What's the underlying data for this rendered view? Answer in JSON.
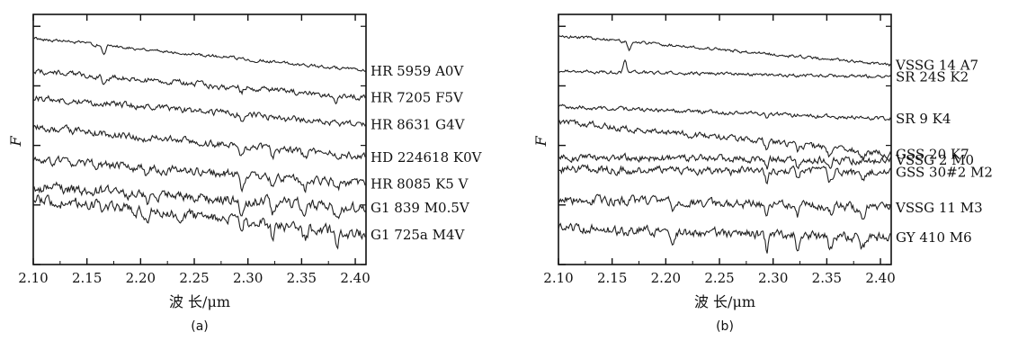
{
  "chart_data": [
    {
      "type": "line",
      "panel_label": "(a)",
      "xlabel": "波 长/μm",
      "ylabel": "F",
      "xlim": [
        2.1,
        2.41
      ],
      "xticks": [
        "2.10",
        "2.15",
        "2.20",
        "2.25",
        "2.30",
        "2.35",
        "2.40"
      ],
      "grid": false,
      "series": [
        {
          "name": "HR 5959 A0V",
          "start": 8.6,
          "end": 7.5,
          "noise": 0.04,
          "features": [
            {
              "x": 2.166,
              "depth": 0.35,
              "width": 0.002
            }
          ]
        },
        {
          "name": "HR 7205 F5V",
          "start": 7.5,
          "end": 6.6,
          "noise": 0.07,
          "features": [
            {
              "x": 2.166,
              "depth": 0.3,
              "width": 0.002
            },
            {
              "x": 2.294,
              "depth": 0.15,
              "width": 0.002
            },
            {
              "x": 2.382,
              "depth": 0.35,
              "width": 0.002
            }
          ]
        },
        {
          "name": "HR 8631 G4V",
          "start": 6.6,
          "end": 5.7,
          "noise": 0.08,
          "features": [
            {
              "x": 2.294,
              "depth": 0.2,
              "width": 0.002
            },
            {
              "x": 2.335,
              "depth": 0.15,
              "width": 0.003
            }
          ]
        },
        {
          "name": "HD 224618 K0V",
          "start": 5.6,
          "end": 4.6,
          "noise": 0.09,
          "features": [
            {
              "x": 2.206,
              "depth": 0.2,
              "width": 0.002
            },
            {
              "x": 2.294,
              "depth": 0.3,
              "width": 0.002
            },
            {
              "x": 2.323,
              "depth": 0.25,
              "width": 0.002
            },
            {
              "x": 2.353,
              "depth": 0.2,
              "width": 0.003
            }
          ]
        },
        {
          "name": "HR 8085 K5 V",
          "start": 4.5,
          "end": 3.7,
          "noise": 0.11,
          "features": [
            {
              "x": 2.206,
              "depth": 0.3,
              "width": 0.002
            },
            {
              "x": 2.294,
              "depth": 0.4,
              "width": 0.002
            },
            {
              "x": 2.323,
              "depth": 0.35,
              "width": 0.002
            },
            {
              "x": 2.353,
              "depth": 0.3,
              "width": 0.003
            },
            {
              "x": 2.383,
              "depth": 0.3,
              "width": 0.003
            }
          ]
        },
        {
          "name": "G1 839 M0.5V",
          "start": 3.6,
          "end": 2.9,
          "noise": 0.13,
          "features": [
            {
              "x": 2.206,
              "depth": 0.3,
              "width": 0.002
            },
            {
              "x": 2.294,
              "depth": 0.45,
              "width": 0.002
            },
            {
              "x": 2.323,
              "depth": 0.4,
              "width": 0.002
            },
            {
              "x": 2.353,
              "depth": 0.35,
              "width": 0.003
            },
            {
              "x": 2.383,
              "depth": 0.35,
              "width": 0.003
            }
          ]
        },
        {
          "name": "G1 725a M4V",
          "start": 3.2,
          "end": 2.0,
          "noise": 0.14,
          "features": [
            {
              "x": 2.206,
              "depth": 0.3,
              "width": 0.002
            },
            {
              "x": 2.294,
              "depth": 0.5,
              "width": 0.002
            },
            {
              "x": 2.323,
              "depth": 0.45,
              "width": 0.002
            },
            {
              "x": 2.353,
              "depth": 0.4,
              "width": 0.003
            },
            {
              "x": 2.383,
              "depth": 0.4,
              "width": 0.003
            }
          ]
        }
      ]
    },
    {
      "type": "line",
      "panel_label": "(b)",
      "xlabel": "波 长/μm",
      "ylabel": "F",
      "xlim": [
        2.1,
        2.41
      ],
      "xticks": [
        "2.10",
        "2.15",
        "2.20",
        "2.25",
        "2.30",
        "2.35",
        "2.40"
      ],
      "grid": false,
      "series": [
        {
          "name": "VSSG 14 A7",
          "start": 8.7,
          "end": 7.7,
          "noise": 0.04,
          "features": [
            {
              "x": 2.166,
              "depth": 0.3,
              "width": 0.002
            }
          ]
        },
        {
          "name": "SR 24S K2",
          "start": 7.5,
          "end": 7.3,
          "noise": 0.04,
          "features": [
            {
              "x": 2.162,
              "depth": -0.4,
              "width": 0.002
            }
          ]
        },
        {
          "name": "SR 9 K4",
          "start": 6.3,
          "end": 5.9,
          "noise": 0.05,
          "features": [
            {
              "x": 2.294,
              "depth": 0.1,
              "width": 0.002
            }
          ]
        },
        {
          "name": "GSS 20 K7",
          "start": 5.8,
          "end": 4.7,
          "noise": 0.08,
          "features": [
            {
              "x": 2.294,
              "depth": 0.3,
              "width": 0.002
            },
            {
              "x": 2.323,
              "depth": 0.25,
              "width": 0.002
            },
            {
              "x": 2.353,
              "depth": 0.25,
              "width": 0.003
            },
            {
              "x": 2.383,
              "depth": 0.25,
              "width": 0.003
            }
          ]
        },
        {
          "name": "VSSG 2 M0",
          "start": 4.6,
          "end": 4.5,
          "noise": 0.09,
          "features": [
            {
              "x": 2.294,
              "depth": 0.3,
              "width": 0.002
            },
            {
              "x": 2.323,
              "depth": 0.25,
              "width": 0.002
            },
            {
              "x": 2.353,
              "depth": 0.2,
              "width": 0.003
            }
          ]
        },
        {
          "name": "GSS 30#2 M2",
          "start": 4.2,
          "end": 4.1,
          "noise": 0.1,
          "features": [
            {
              "x": 2.294,
              "depth": 0.4,
              "width": 0.002
            },
            {
              "x": 2.323,
              "depth": 0.3,
              "width": 0.002
            },
            {
              "x": 2.353,
              "depth": 0.3,
              "width": 0.003
            },
            {
              "x": 2.383,
              "depth": 0.3,
              "width": 0.003
            }
          ]
        },
        {
          "name": "VSSG 11 M3",
          "start": 3.2,
          "end": 2.9,
          "noise": 0.11,
          "features": [
            {
              "x": 2.206,
              "depth": 0.2,
              "width": 0.002
            },
            {
              "x": 2.294,
              "depth": 0.45,
              "width": 0.002
            },
            {
              "x": 2.323,
              "depth": 0.35,
              "width": 0.002
            },
            {
              "x": 2.353,
              "depth": 0.3,
              "width": 0.003
            },
            {
              "x": 2.383,
              "depth": 0.3,
              "width": 0.003
            }
          ]
        },
        {
          "name": "GY 410 M6",
          "start": 2.2,
          "end": 1.9,
          "noise": 0.12,
          "features": [
            {
              "x": 2.206,
              "depth": 0.3,
              "width": 0.002
            },
            {
              "x": 2.294,
              "depth": 0.5,
              "width": 0.002
            },
            {
              "x": 2.323,
              "depth": 0.45,
              "width": 0.002
            },
            {
              "x": 2.353,
              "depth": 0.4,
              "width": 0.003
            },
            {
              "x": 2.383,
              "depth": 0.4,
              "width": 0.003
            }
          ]
        }
      ]
    }
  ]
}
